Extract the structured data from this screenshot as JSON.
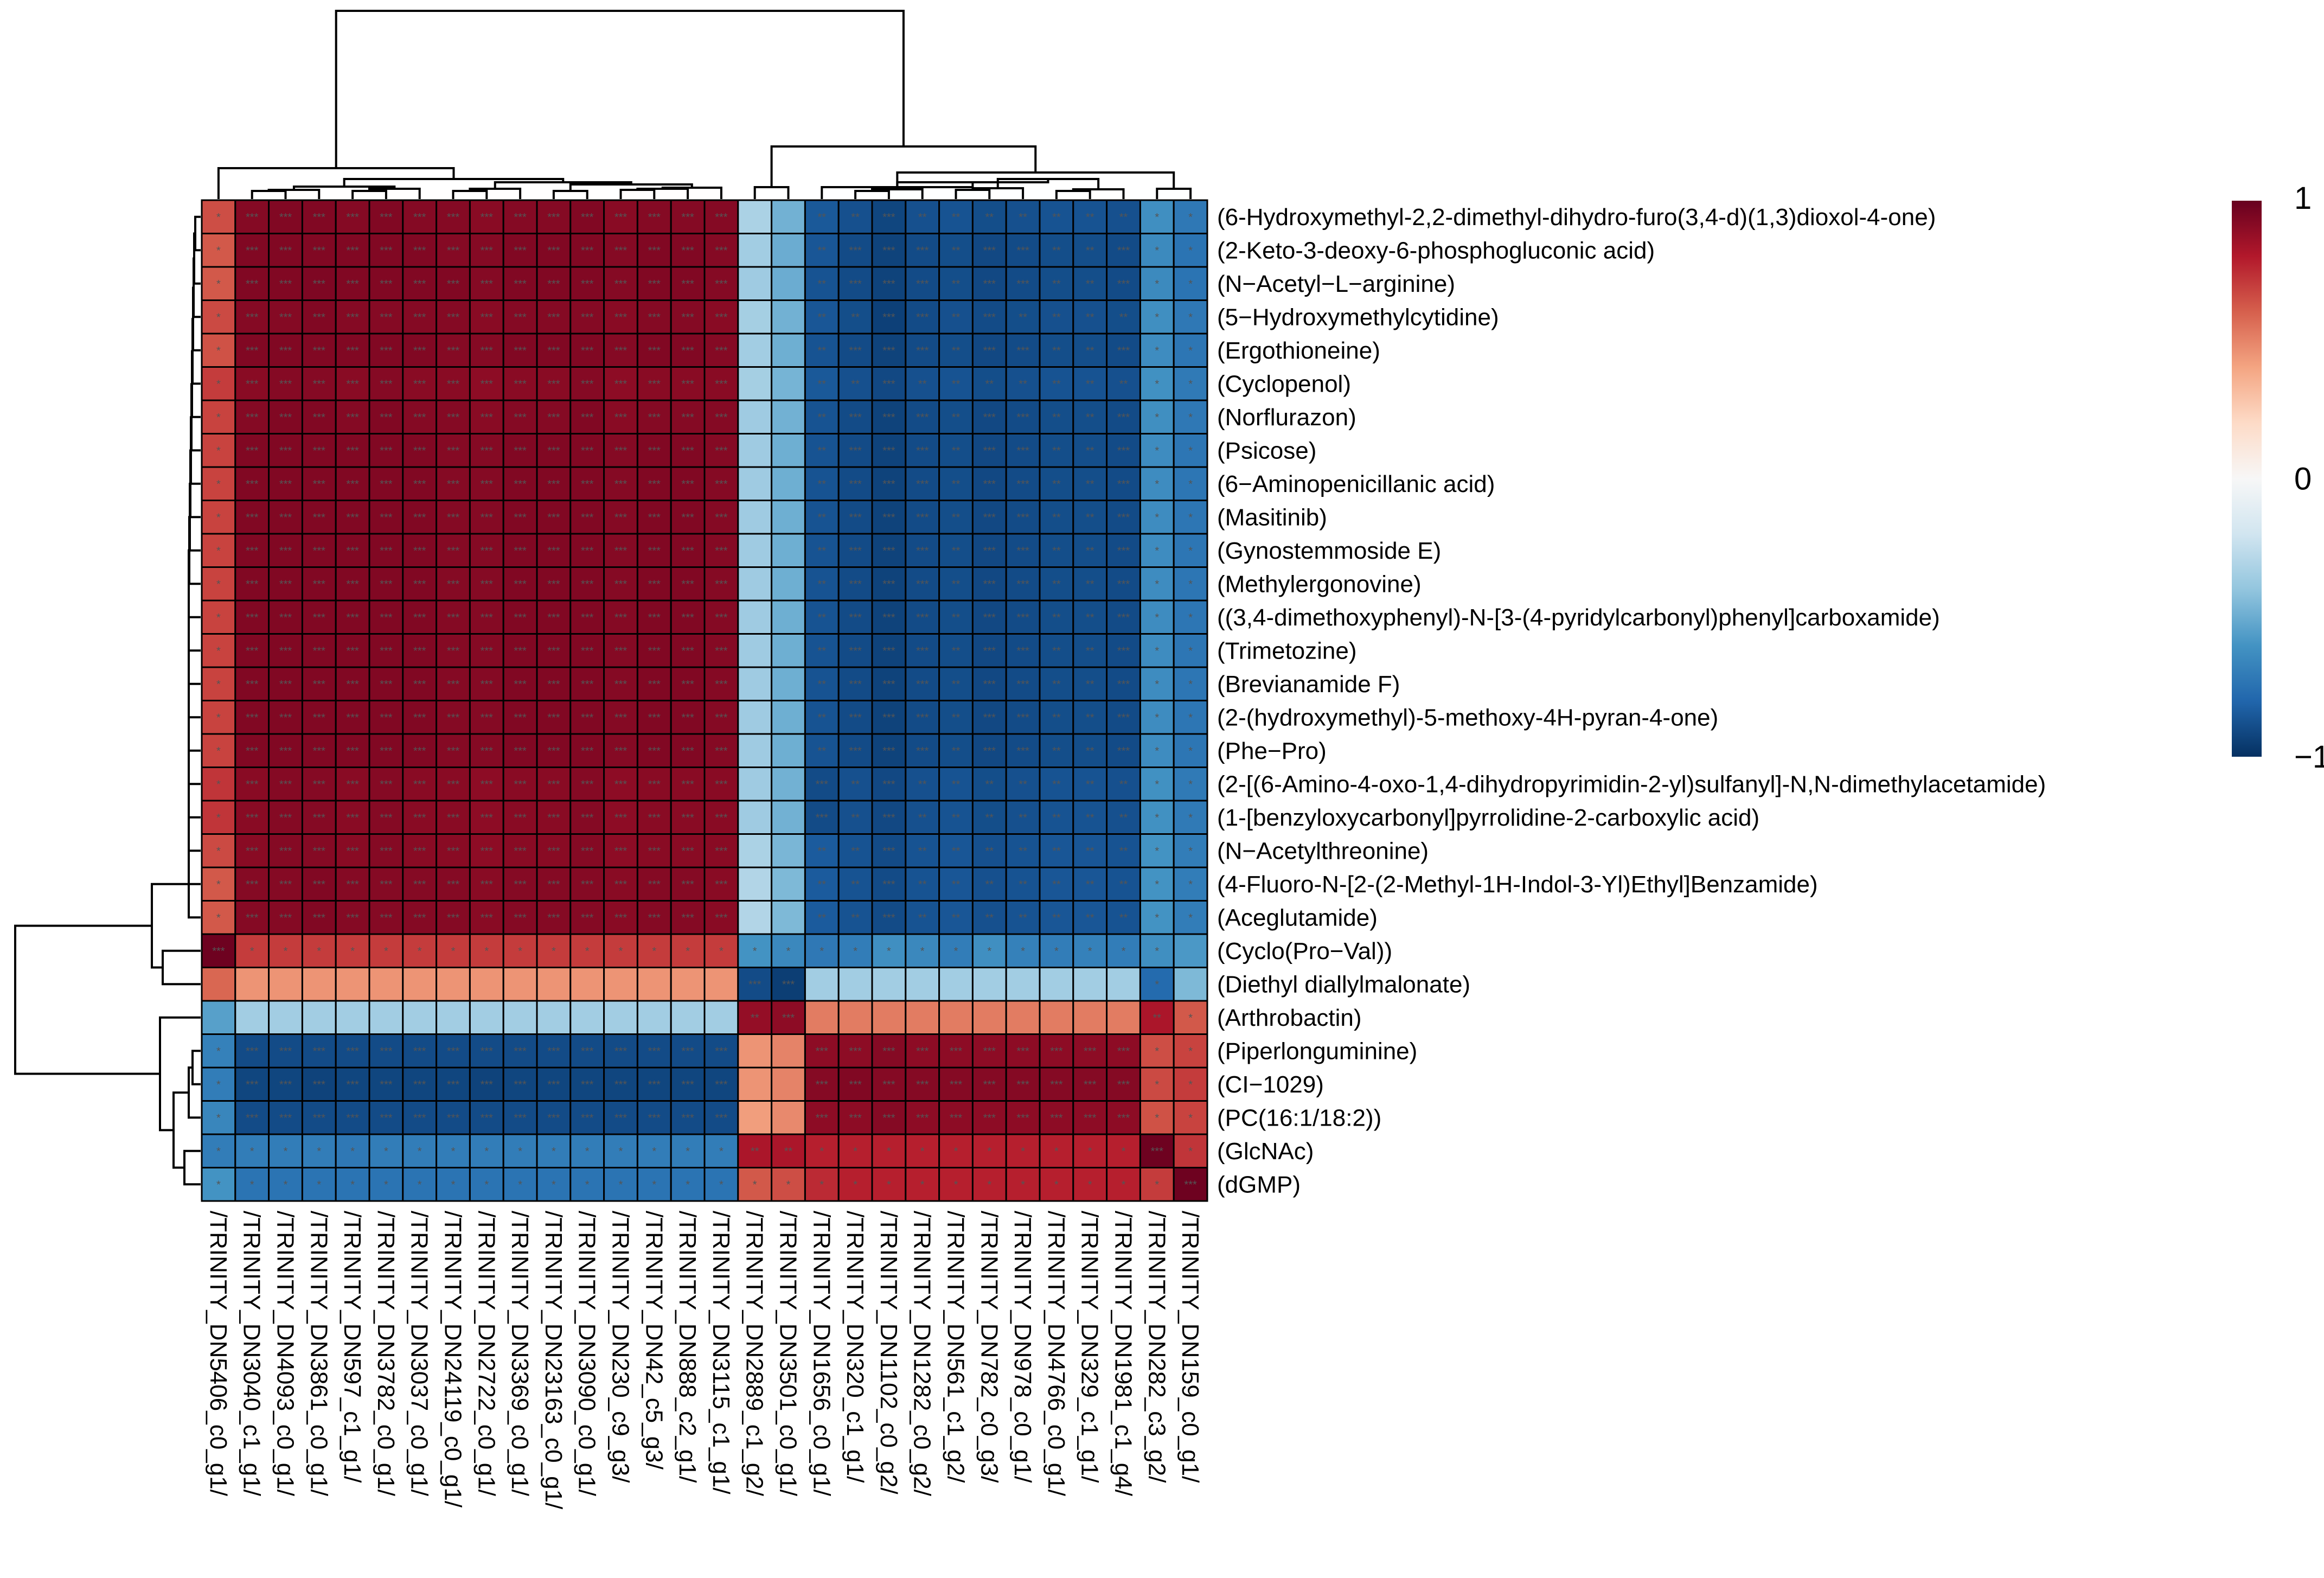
{
  "chart_data": {
    "type": "heatmap",
    "title": "",
    "rows": [
      "(6-Hydroxymethyl-2,2-dimethyl-dihydro-furo(3,4-d)(1,3)dioxol-4-one)",
      "(2-Keto-3-deoxy-6-phosphogluconic acid)",
      "(N−Acetyl−L−arginine)",
      "(5−Hydroxymethylcytidine)",
      "(Ergothioneine)",
      "(Cyclopenol)",
      "(Norflurazon)",
      "(Psicose)",
      "(6−Aminopenicillanic acid)",
      "(Masitinib)",
      "(Gynostemmoside E)",
      "(Methylergonovine)",
      "((3,4-dimethoxyphenyl)-N-[3-(4-pyridylcarbonyl)phenyl]carboxamide)",
      "(Trimetozine)",
      "(Brevianamide F)",
      "(2-(hydroxymethyl)-5-methoxy-4H-pyran-4-one)",
      "(Phe−Pro)",
      "(2-[(6-Amino-4-oxo-1,4-dihydropyrimidin-2-yl)sulfanyl]-N,N-dimethylacetamide)",
      "(1-[benzyloxycarbonyl]pyrrolidine-2-carboxylic acid)",
      "(N−Acetylthreonine)",
      "(4-Fluoro-N-[2-(2-Methyl-1H-Indol-3-Yl)Ethyl]Benzamide)",
      "(Aceglutamide)",
      "(Cyclo(Pro−Val))",
      "(Diethyl diallylmalonate)",
      "(Arthrobactin)",
      "(Piperlonguminine)",
      "(CI−1029)",
      "(PC(16:1/18:2))",
      "(GlcNAc)",
      "(dGMP)"
    ],
    "columns": [
      "/TRINITY_DN5406_c0_g1/",
      "/TRINITY_DN3040_c1_g1/",
      "/TRINITY_DN4093_c0_g1/",
      "/TRINITY_DN3861_c0_g1/",
      "/TRINITY_DN597_c1_g1/",
      "/TRINITY_DN3782_c0_g1/",
      "/TRINITY_DN3037_c0_g1/",
      "/TRINITY_DN24119_c0_g1/",
      "/TRINITY_DN2722_c0_g1/",
      "/TRINITY_DN3369_c0_g1/",
      "/TRINITY_DN23163_c0_g1/",
      "/TRINITY_DN3090_c0_g1/",
      "/TRINITY_DN230_c9_g3/",
      "/TRINITY_DN42_c5_g3/",
      "/TRINITY_DN888_c2_g1/",
      "/TRINITY_DN3115_c1_g1/",
      "/TRINITY_DN2889_c1_g2/",
      "/TRINITY_DN3501_c0_g1/",
      "/TRINITY_DN1656_c0_g1/",
      "/TRINITY_DN320_c1_g1/",
      "/TRINITY_DN1102_c0_g2/",
      "/TRINITY_DN1282_c0_g2/",
      "/TRINITY_DN561_c1_g2/",
      "/TRINITY_DN782_c0_g3/",
      "/TRINITY_DN978_c0_g1/",
      "/TRINITY_DN4766_c0_g1/",
      "/TRINITY_DN329_c1_g1/",
      "/TRINITY_DN1981_c1_g4/",
      "/TRINITY_DN282_c3_g2/",
      "/TRINITY_DN159_c0_g1/"
    ],
    "values": [
      [
        0.65,
        0.92,
        0.93,
        0.93,
        0.92,
        0.93,
        0.92,
        0.92,
        0.91,
        0.92,
        0.92,
        0.93,
        0.91,
        0.92,
        0.92,
        0.92,
        -0.32,
        -0.48,
        -0.85,
        -0.88,
        -0.92,
        -0.88,
        -0.87,
        -0.89,
        -0.88,
        -0.87,
        -0.87,
        -0.88,
        -0.62,
        -0.72
      ],
      [
        0.62,
        0.93,
        0.93,
        0.93,
        0.93,
        0.93,
        0.93,
        0.92,
        0.92,
        0.93,
        0.93,
        0.93,
        0.92,
        0.93,
        0.93,
        0.92,
        -0.35,
        -0.5,
        -0.86,
        -0.9,
        -0.93,
        -0.9,
        -0.89,
        -0.91,
        -0.9,
        -0.89,
        -0.89,
        -0.9,
        -0.64,
        -0.74
      ],
      [
        0.62,
        0.93,
        0.93,
        0.94,
        0.93,
        0.93,
        0.93,
        0.93,
        0.92,
        0.93,
        0.93,
        0.93,
        0.92,
        0.93,
        0.93,
        0.92,
        -0.36,
        -0.5,
        -0.87,
        -0.9,
        -0.93,
        -0.9,
        -0.89,
        -0.91,
        -0.9,
        -0.89,
        -0.89,
        -0.9,
        -0.64,
        -0.74
      ],
      [
        0.66,
        0.92,
        0.92,
        0.93,
        0.92,
        0.92,
        0.92,
        0.92,
        0.91,
        0.92,
        0.92,
        0.92,
        0.91,
        0.92,
        0.92,
        0.91,
        -0.34,
        -0.48,
        -0.86,
        -0.89,
        -0.94,
        -0.9,
        -0.88,
        -0.9,
        -0.89,
        -0.88,
        -0.88,
        -0.89,
        -0.62,
        -0.72
      ],
      [
        0.64,
        0.93,
        0.93,
        0.93,
        0.93,
        0.93,
        0.93,
        0.92,
        0.92,
        0.93,
        0.93,
        0.93,
        0.92,
        0.93,
        0.93,
        0.92,
        -0.35,
        -0.49,
        -0.87,
        -0.9,
        -0.93,
        -0.9,
        -0.89,
        -0.91,
        -0.9,
        -0.89,
        -0.89,
        -0.9,
        -0.63,
        -0.73
      ],
      [
        0.7,
        0.91,
        0.92,
        0.92,
        0.91,
        0.92,
        0.91,
        0.91,
        0.9,
        0.91,
        0.91,
        0.92,
        0.9,
        0.91,
        0.91,
        0.91,
        -0.34,
        -0.47,
        -0.85,
        -0.88,
        -0.91,
        -0.88,
        -0.87,
        -0.89,
        -0.88,
        -0.87,
        -0.87,
        -0.88,
        -0.61,
        -0.71
      ],
      [
        0.68,
        0.92,
        0.93,
        0.93,
        0.92,
        0.93,
        0.92,
        0.92,
        0.91,
        0.92,
        0.92,
        0.93,
        0.91,
        0.92,
        0.92,
        0.92,
        -0.36,
        -0.48,
        -0.87,
        -0.9,
        -0.93,
        -0.9,
        -0.89,
        -0.91,
        -0.9,
        -0.89,
        -0.89,
        -0.9,
        -0.62,
        -0.72
      ],
      [
        0.68,
        0.93,
        0.93,
        0.93,
        0.93,
        0.93,
        0.93,
        0.92,
        0.92,
        0.93,
        0.93,
        0.93,
        0.92,
        0.93,
        0.93,
        0.92,
        -0.36,
        -0.49,
        -0.87,
        -0.9,
        -0.93,
        -0.9,
        -0.89,
        -0.91,
        -0.9,
        -0.89,
        -0.89,
        -0.9,
        -0.63,
        -0.73
      ],
      [
        0.68,
        0.93,
        0.93,
        0.93,
        0.93,
        0.93,
        0.93,
        0.92,
        0.92,
        0.93,
        0.93,
        0.93,
        0.92,
        0.93,
        0.93,
        0.92,
        -0.36,
        -0.49,
        -0.87,
        -0.9,
        -0.93,
        -0.9,
        -0.89,
        -0.91,
        -0.9,
        -0.89,
        -0.89,
        -0.9,
        -0.63,
        -0.73
      ],
      [
        0.68,
        0.93,
        0.93,
        0.93,
        0.93,
        0.93,
        0.93,
        0.92,
        0.92,
        0.93,
        0.93,
        0.93,
        0.92,
        0.93,
        0.93,
        0.92,
        -0.36,
        -0.49,
        -0.87,
        -0.9,
        -0.93,
        -0.9,
        -0.89,
        -0.91,
        -0.9,
        -0.89,
        -0.89,
        -0.9,
        -0.63,
        -0.73
      ],
      [
        0.68,
        0.93,
        0.93,
        0.93,
        0.93,
        0.93,
        0.93,
        0.92,
        0.92,
        0.93,
        0.93,
        0.93,
        0.92,
        0.93,
        0.93,
        0.92,
        -0.36,
        -0.49,
        -0.87,
        -0.9,
        -0.93,
        -0.9,
        -0.89,
        -0.91,
        -0.9,
        -0.89,
        -0.89,
        -0.9,
        -0.63,
        -0.73
      ],
      [
        0.68,
        0.93,
        0.93,
        0.93,
        0.93,
        0.93,
        0.93,
        0.92,
        0.92,
        0.93,
        0.93,
        0.93,
        0.92,
        0.93,
        0.93,
        0.92,
        -0.36,
        -0.49,
        -0.87,
        -0.9,
        -0.93,
        -0.9,
        -0.89,
        -0.91,
        -0.9,
        -0.89,
        -0.89,
        -0.9,
        -0.63,
        -0.73
      ],
      [
        0.68,
        0.93,
        0.93,
        0.93,
        0.93,
        0.93,
        0.93,
        0.92,
        0.92,
        0.93,
        0.93,
        0.93,
        0.92,
        0.93,
        0.93,
        0.92,
        -0.36,
        -0.49,
        -0.87,
        -0.9,
        -0.93,
        -0.9,
        -0.89,
        -0.91,
        -0.9,
        -0.89,
        -0.89,
        -0.9,
        -0.63,
        -0.73
      ],
      [
        0.68,
        0.93,
        0.93,
        0.93,
        0.93,
        0.93,
        0.93,
        0.92,
        0.92,
        0.93,
        0.93,
        0.93,
        0.92,
        0.93,
        0.93,
        0.92,
        -0.36,
        -0.49,
        -0.87,
        -0.9,
        -0.93,
        -0.9,
        -0.89,
        -0.91,
        -0.9,
        -0.89,
        -0.89,
        -0.9,
        -0.63,
        -0.73
      ],
      [
        0.68,
        0.93,
        0.93,
        0.93,
        0.93,
        0.93,
        0.93,
        0.92,
        0.92,
        0.93,
        0.93,
        0.93,
        0.92,
        0.93,
        0.93,
        0.92,
        -0.36,
        -0.49,
        -0.87,
        -0.9,
        -0.93,
        -0.9,
        -0.89,
        -0.91,
        -0.9,
        -0.89,
        -0.89,
        -0.9,
        -0.63,
        -0.73
      ],
      [
        0.68,
        0.93,
        0.93,
        0.93,
        0.93,
        0.93,
        0.93,
        0.92,
        0.92,
        0.93,
        0.93,
        0.93,
        0.92,
        0.93,
        0.93,
        0.92,
        -0.36,
        -0.49,
        -0.87,
        -0.9,
        -0.93,
        -0.9,
        -0.89,
        -0.91,
        -0.9,
        -0.89,
        -0.89,
        -0.9,
        -0.63,
        -0.73
      ],
      [
        0.68,
        0.93,
        0.93,
        0.93,
        0.93,
        0.93,
        0.93,
        0.92,
        0.92,
        0.93,
        0.93,
        0.93,
        0.92,
        0.93,
        0.93,
        0.92,
        -0.36,
        -0.49,
        -0.87,
        -0.9,
        -0.93,
        -0.9,
        -0.89,
        -0.91,
        -0.9,
        -0.89,
        -0.89,
        -0.9,
        -0.63,
        -0.73
      ],
      [
        0.72,
        0.91,
        0.92,
        0.92,
        0.91,
        0.92,
        0.91,
        0.91,
        0.9,
        0.91,
        0.91,
        0.92,
        0.9,
        0.91,
        0.91,
        0.91,
        -0.36,
        -0.48,
        -0.9,
        -0.88,
        -0.91,
        -0.88,
        -0.87,
        -0.89,
        -0.88,
        -0.87,
        -0.87,
        -0.88,
        -0.61,
        -0.71
      ],
      [
        0.72,
        0.91,
        0.92,
        0.92,
        0.91,
        0.92,
        0.91,
        0.91,
        0.9,
        0.91,
        0.91,
        0.92,
        0.9,
        0.91,
        0.91,
        0.91,
        -0.36,
        -0.48,
        -0.9,
        -0.88,
        -0.91,
        -0.88,
        -0.87,
        -0.89,
        -0.88,
        -0.87,
        -0.87,
        -0.88,
        -0.61,
        -0.71
      ],
      [
        0.66,
        0.91,
        0.92,
        0.92,
        0.91,
        0.92,
        0.91,
        0.91,
        0.9,
        0.91,
        0.91,
        0.92,
        0.9,
        0.91,
        0.91,
        0.91,
        -0.32,
        -0.46,
        -0.84,
        -0.87,
        -0.9,
        -0.87,
        -0.86,
        -0.88,
        -0.87,
        -0.86,
        -0.86,
        -0.87,
        -0.6,
        -0.7
      ],
      [
        0.62,
        0.92,
        0.92,
        0.93,
        0.92,
        0.92,
        0.92,
        0.92,
        0.91,
        0.92,
        0.92,
        0.92,
        0.91,
        0.92,
        0.92,
        0.91,
        -0.3,
        -0.45,
        -0.84,
        -0.87,
        -0.9,
        -0.87,
        -0.86,
        -0.88,
        -0.87,
        -0.86,
        -0.86,
        -0.87,
        -0.6,
        -0.7
      ],
      [
        0.62,
        0.92,
        0.92,
        0.93,
        0.92,
        0.92,
        0.92,
        0.92,
        0.91,
        0.92,
        0.92,
        0.92,
        0.91,
        0.92,
        0.92,
        0.91,
        -0.3,
        -0.45,
        -0.84,
        -0.87,
        -0.9,
        -0.87,
        -0.86,
        -0.88,
        -0.87,
        -0.86,
        -0.86,
        -0.87,
        -0.6,
        -0.7
      ],
      [
        0.98,
        0.7,
        0.7,
        0.7,
        0.7,
        0.7,
        0.7,
        0.7,
        0.7,
        0.7,
        0.7,
        0.7,
        0.7,
        0.7,
        0.7,
        0.7,
        -0.6,
        -0.65,
        -0.72,
        -0.7,
        -0.62,
        -0.65,
        -0.7,
        -0.62,
        -0.68,
        -0.7,
        -0.68,
        -0.7,
        -0.62,
        -0.58
      ],
      [
        0.58,
        0.45,
        0.45,
        0.45,
        0.45,
        0.45,
        0.45,
        0.45,
        0.45,
        0.45,
        0.45,
        0.45,
        0.45,
        0.45,
        0.45,
        0.45,
        -0.9,
        -0.95,
        -0.35,
        -0.35,
        -0.35,
        -0.35,
        -0.35,
        -0.35,
        -0.35,
        -0.35,
        -0.35,
        -0.35,
        -0.78,
        -0.45
      ],
      [
        -0.55,
        -0.35,
        -0.35,
        -0.35,
        -0.35,
        -0.35,
        -0.35,
        -0.35,
        -0.35,
        -0.35,
        -0.35,
        -0.35,
        -0.35,
        -0.35,
        -0.35,
        -0.35,
        0.88,
        0.9,
        0.52,
        0.52,
        0.52,
        0.52,
        0.52,
        0.52,
        0.52,
        0.52,
        0.52,
        0.52,
        0.82,
        0.62
      ],
      [
        -0.68,
        -0.9,
        -0.9,
        -0.9,
        -0.9,
        -0.9,
        -0.9,
        -0.9,
        -0.9,
        -0.9,
        -0.9,
        -0.9,
        -0.9,
        -0.9,
        -0.9,
        -0.9,
        0.45,
        0.5,
        0.9,
        0.9,
        0.92,
        0.9,
        0.9,
        0.9,
        0.9,
        0.9,
        0.9,
        0.9,
        0.65,
        0.68
      ],
      [
        -0.7,
        -0.92,
        -0.92,
        -0.93,
        -0.92,
        -0.92,
        -0.92,
        -0.92,
        -0.93,
        -0.92,
        -0.92,
        -0.92,
        -0.92,
        -0.92,
        -0.92,
        -0.92,
        0.45,
        0.5,
        0.92,
        0.93,
        0.92,
        0.92,
        0.92,
        0.92,
        0.92,
        0.92,
        0.92,
        0.92,
        0.66,
        0.7
      ],
      [
        -0.66,
        -0.9,
        -0.9,
        -0.9,
        -0.9,
        -0.9,
        -0.9,
        -0.9,
        -0.9,
        -0.9,
        -0.9,
        -0.9,
        -0.9,
        -0.9,
        -0.9,
        -0.9,
        0.42,
        0.48,
        0.9,
        0.9,
        0.92,
        0.9,
        0.9,
        0.9,
        0.9,
        0.9,
        0.9,
        0.9,
        0.64,
        0.68
      ],
      [
        -0.7,
        -0.7,
        -0.7,
        -0.7,
        -0.72,
        -0.7,
        -0.7,
        -0.7,
        -0.7,
        -0.7,
        -0.7,
        -0.7,
        -0.7,
        -0.7,
        -0.7,
        -0.7,
        0.82,
        0.82,
        0.78,
        0.78,
        0.78,
        0.78,
        0.78,
        0.78,
        0.78,
        0.78,
        0.78,
        0.78,
        0.98,
        0.72
      ],
      [
        -0.6,
        -0.74,
        -0.74,
        -0.74,
        -0.74,
        -0.74,
        -0.74,
        -0.74,
        -0.74,
        -0.74,
        -0.74,
        -0.74,
        -0.74,
        -0.74,
        -0.74,
        -0.74,
        0.62,
        0.65,
        0.75,
        0.78,
        0.78,
        0.78,
        0.78,
        0.78,
        0.78,
        0.78,
        0.78,
        0.78,
        0.7,
        0.98
      ]
    ],
    "colorscale": {
      "min": -1,
      "max": 1,
      "stops": [
        "#053061",
        "#2166ac",
        "#4393c3",
        "#92c5de",
        "#d1e5f0",
        "#f7f7f7",
        "#fddbc7",
        "#f4a582",
        "#d6604d",
        "#b2182b",
        "#67001f"
      ]
    },
    "colorbar_ticks": [
      "1",
      "0",
      "−1"
    ],
    "row_dendrogram": true,
    "column_dendrogram": true,
    "significance_stars": true
  }
}
